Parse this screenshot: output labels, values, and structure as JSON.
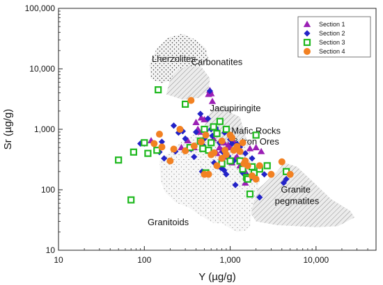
{
  "chart_data": {
    "type": "scatter",
    "xscale": "log",
    "yscale": "log",
    "xlim": [
      10,
      50000
    ],
    "ylim": [
      10,
      100000
    ],
    "xlabel": "Y (µg/g)",
    "ylabel": "Sr (µg/g)",
    "x_ticks": [
      "10",
      "100",
      "1,000",
      "10,000"
    ],
    "y_ticks": [
      "10",
      "100",
      "1,000",
      "10,000",
      "100,000"
    ],
    "legend_position": "top-right",
    "grid": false,
    "regions": [
      {
        "name": "Lherzolites",
        "pattern": "dots",
        "label_pos": [
          220,
          13000
        ],
        "polygon": [
          [
            115,
            12000
          ],
          [
            140,
            22000
          ],
          [
            190,
            33000
          ],
          [
            280,
            38000
          ],
          [
            400,
            30000
          ],
          [
            520,
            22000
          ],
          [
            560,
            14000
          ],
          [
            450,
            10500
          ],
          [
            340,
            8500
          ],
          [
            240,
            7000
          ],
          [
            160,
            5800
          ],
          [
            118,
            6800
          ]
        ]
      },
      {
        "name": "Carbonatites",
        "pattern": "hatch",
        "label_pos": [
          700,
          11500
        ],
        "polygon": [
          [
            180,
            3800
          ],
          [
            200,
            6800
          ],
          [
            240,
            9500
          ],
          [
            330,
            11000
          ],
          [
            470,
            10500
          ],
          [
            580,
            7000
          ],
          [
            560,
            4300
          ],
          [
            430,
            3300
          ],
          [
            280,
            3100
          ]
        ]
      },
      {
        "name": "Jacupiringite",
        "pattern": "hatch",
        "label_pos": [
          1150,
          2000
        ],
        "polygon": [
          [
            500,
            1100
          ],
          [
            540,
            1600
          ],
          [
            650,
            2300
          ],
          [
            860,
            2500
          ],
          [
            1050,
            2100
          ],
          [
            1020,
            1400
          ],
          [
            860,
            1000
          ],
          [
            620,
            950
          ]
        ]
      },
      {
        "name": "Mafic Rocks",
        "pattern": "hatch",
        "label_pos": [
          2000,
          840
        ],
        "label2": "& Iron Ores",
        "label2_pos": [
          2000,
          560
        ],
        "polygon": [
          [
            650,
            700
          ],
          [
            720,
            1200
          ],
          [
            800,
            1700
          ],
          [
            1000,
            1900
          ],
          [
            1300,
            1600
          ],
          [
            1400,
            1100
          ],
          [
            1550,
            700
          ],
          [
            1400,
            380
          ],
          [
            1150,
            220
          ],
          [
            850,
            260
          ],
          [
            700,
            380
          ]
        ]
      },
      {
        "name": "Granite",
        "pattern": "hatch",
        "label_pos": [
          5800,
          90
        ],
        "label2": "pegmatites",
        "label2_pos": [
          6000,
          58
        ],
        "polygon": [
          [
            1500,
            55
          ],
          [
            1600,
            80
          ],
          [
            2400,
            120
          ],
          [
            3500,
            200
          ],
          [
            4300,
            280
          ],
          [
            6000,
            240
          ],
          [
            9000,
            140
          ],
          [
            15000,
            70
          ],
          [
            25000,
            45
          ],
          [
            28000,
            35
          ],
          [
            18000,
            25
          ],
          [
            10000,
            24
          ],
          [
            6000,
            25
          ],
          [
            3500,
            26
          ],
          [
            2000,
            30
          ]
        ]
      },
      {
        "name": "Granitoids",
        "pattern": "dots",
        "label_pos": [
          330,
          26
        ],
        "label_anchor": "end",
        "polygon": [
          [
            150,
            300
          ],
          [
            200,
            430
          ],
          [
            280,
            650
          ],
          [
            420,
            900
          ],
          [
            560,
            950
          ],
          [
            700,
            620
          ],
          [
            900,
            480
          ],
          [
            1200,
            420
          ],
          [
            1500,
            650
          ],
          [
            1800,
            700
          ],
          [
            1700,
            380
          ],
          [
            2000,
            250
          ],
          [
            2200,
            140
          ],
          [
            2000,
            80
          ],
          [
            1800,
            50
          ],
          [
            1700,
            25
          ],
          [
            1500,
            21
          ],
          [
            1200,
            20
          ],
          [
            1000,
            23
          ],
          [
            800,
            28
          ],
          [
            650,
            28
          ],
          [
            540,
            32
          ],
          [
            420,
            40
          ],
          [
            320,
            52
          ],
          [
            230,
            62
          ],
          [
            175,
            90
          ],
          [
            155,
            140
          ]
        ]
      }
    ],
    "series": [
      {
        "name": "Section 1",
        "marker": "triangle",
        "color": "#9b1fb5",
        "points": [
          [
            100,
            600
          ],
          [
            120,
            650
          ],
          [
            270,
            500
          ],
          [
            320,
            650
          ],
          [
            340,
            480
          ],
          [
            380,
            500
          ],
          [
            400,
            1300
          ],
          [
            420,
            1000
          ],
          [
            440,
            900
          ],
          [
            460,
            1550
          ],
          [
            500,
            1450
          ],
          [
            560,
            3800
          ],
          [
            580,
            4400
          ],
          [
            600,
            3900
          ],
          [
            620,
            2900
          ],
          [
            640,
            700
          ],
          [
            700,
            400
          ],
          [
            750,
            500
          ],
          [
            800,
            450
          ],
          [
            850,
            600
          ],
          [
            900,
            350
          ],
          [
            950,
            550
          ],
          [
            1000,
            500
          ],
          [
            1050,
            280
          ],
          [
            1100,
            620
          ],
          [
            1150,
            330
          ],
          [
            1200,
            350
          ],
          [
            1300,
            250
          ],
          [
            1400,
            250
          ],
          [
            1500,
            200
          ],
          [
            1600,
            170
          ],
          [
            1700,
            480
          ],
          [
            2000,
            500
          ],
          [
            2300,
            430
          ],
          [
            1500,
            130
          ]
        ]
      },
      {
        "name": "Section 2",
        "marker": "diamond",
        "color": "#2323c8",
        "points": [
          [
            90,
            580
          ],
          [
            100,
            580
          ],
          [
            150,
            420
          ],
          [
            160,
            620
          ],
          [
            170,
            330
          ],
          [
            220,
            1150
          ],
          [
            230,
            430
          ],
          [
            250,
            880
          ],
          [
            280,
            930
          ],
          [
            300,
            700
          ],
          [
            330,
            480
          ],
          [
            350,
            470
          ],
          [
            380,
            350
          ],
          [
            400,
            900
          ],
          [
            450,
            1800
          ],
          [
            470,
            200
          ],
          [
            480,
            550
          ],
          [
            500,
            700
          ],
          [
            520,
            950
          ],
          [
            550,
            1500
          ],
          [
            580,
            4300
          ],
          [
            600,
            1000
          ],
          [
            620,
            780
          ],
          [
            650,
            280
          ],
          [
            680,
            1050
          ],
          [
            700,
            950
          ],
          [
            750,
            600
          ],
          [
            780,
            230
          ],
          [
            820,
            420
          ],
          [
            850,
            210
          ],
          [
            900,
            180
          ],
          [
            950,
            360
          ],
          [
            1000,
            680
          ],
          [
            1050,
            580
          ],
          [
            1100,
            300
          ],
          [
            1150,
            120
          ],
          [
            1200,
            570
          ],
          [
            1300,
            510
          ],
          [
            1400,
            190
          ],
          [
            1500,
            400
          ],
          [
            1600,
            170
          ],
          [
            1700,
            150
          ],
          [
            1800,
            330
          ],
          [
            2200,
            75
          ],
          [
            2500,
            180
          ],
          [
            4200,
            130
          ],
          [
            4500,
            150
          ],
          [
            1250,
            480
          ],
          [
            860,
            880
          ]
        ]
      },
      {
        "name": "Section 3",
        "marker": "square",
        "color": "#1db81d",
        "points": [
          [
            50,
            310
          ],
          [
            70,
            68
          ],
          [
            75,
            420
          ],
          [
            100,
            600
          ],
          [
            110,
            400
          ],
          [
            140,
            450
          ],
          [
            145,
            4500
          ],
          [
            300,
            2600
          ],
          [
            340,
            500
          ],
          [
            450,
            640
          ],
          [
            480,
            480
          ],
          [
            500,
            1000
          ],
          [
            520,
            190
          ],
          [
            560,
            450
          ],
          [
            600,
            600
          ],
          [
            640,
            1100
          ],
          [
            700,
            850
          ],
          [
            760,
            1350
          ],
          [
            800,
            270
          ],
          [
            900,
            1000
          ],
          [
            1000,
            300
          ],
          [
            1300,
            300
          ],
          [
            1400,
            220
          ],
          [
            1550,
            160
          ],
          [
            1600,
            150
          ],
          [
            1700,
            85
          ],
          [
            1800,
            240
          ],
          [
            1900,
            190
          ],
          [
            2000,
            800
          ],
          [
            2200,
            220
          ],
          [
            2700,
            250
          ],
          [
            4500,
            200
          ]
        ]
      },
      {
        "name": "Section 4",
        "marker": "circle",
        "color": "#f28122",
        "points": [
          [
            130,
            580
          ],
          [
            150,
            830
          ],
          [
            160,
            510
          ],
          [
            200,
            300
          ],
          [
            220,
            470
          ],
          [
            260,
            1000
          ],
          [
            300,
            440
          ],
          [
            350,
            3000
          ],
          [
            380,
            530
          ],
          [
            460,
            620
          ],
          [
            500,
            180
          ],
          [
            520,
            800
          ],
          [
            560,
            180
          ],
          [
            600,
            380
          ],
          [
            650,
            410
          ],
          [
            700,
            250
          ],
          [
            800,
            640
          ],
          [
            870,
            450
          ],
          [
            900,
            380
          ],
          [
            1000,
            800
          ],
          [
            1050,
            720
          ],
          [
            1100,
            450
          ],
          [
            1200,
            520
          ],
          [
            1300,
            430
          ],
          [
            1400,
            600
          ],
          [
            1450,
            270
          ],
          [
            1500,
            300
          ],
          [
            1600,
            250
          ],
          [
            1800,
            170
          ],
          [
            2000,
            150
          ],
          [
            2200,
            250
          ],
          [
            3000,
            180
          ],
          [
            4000,
            290
          ],
          [
            5000,
            180
          ],
          [
            800,
            330
          ]
        ]
      }
    ]
  }
}
